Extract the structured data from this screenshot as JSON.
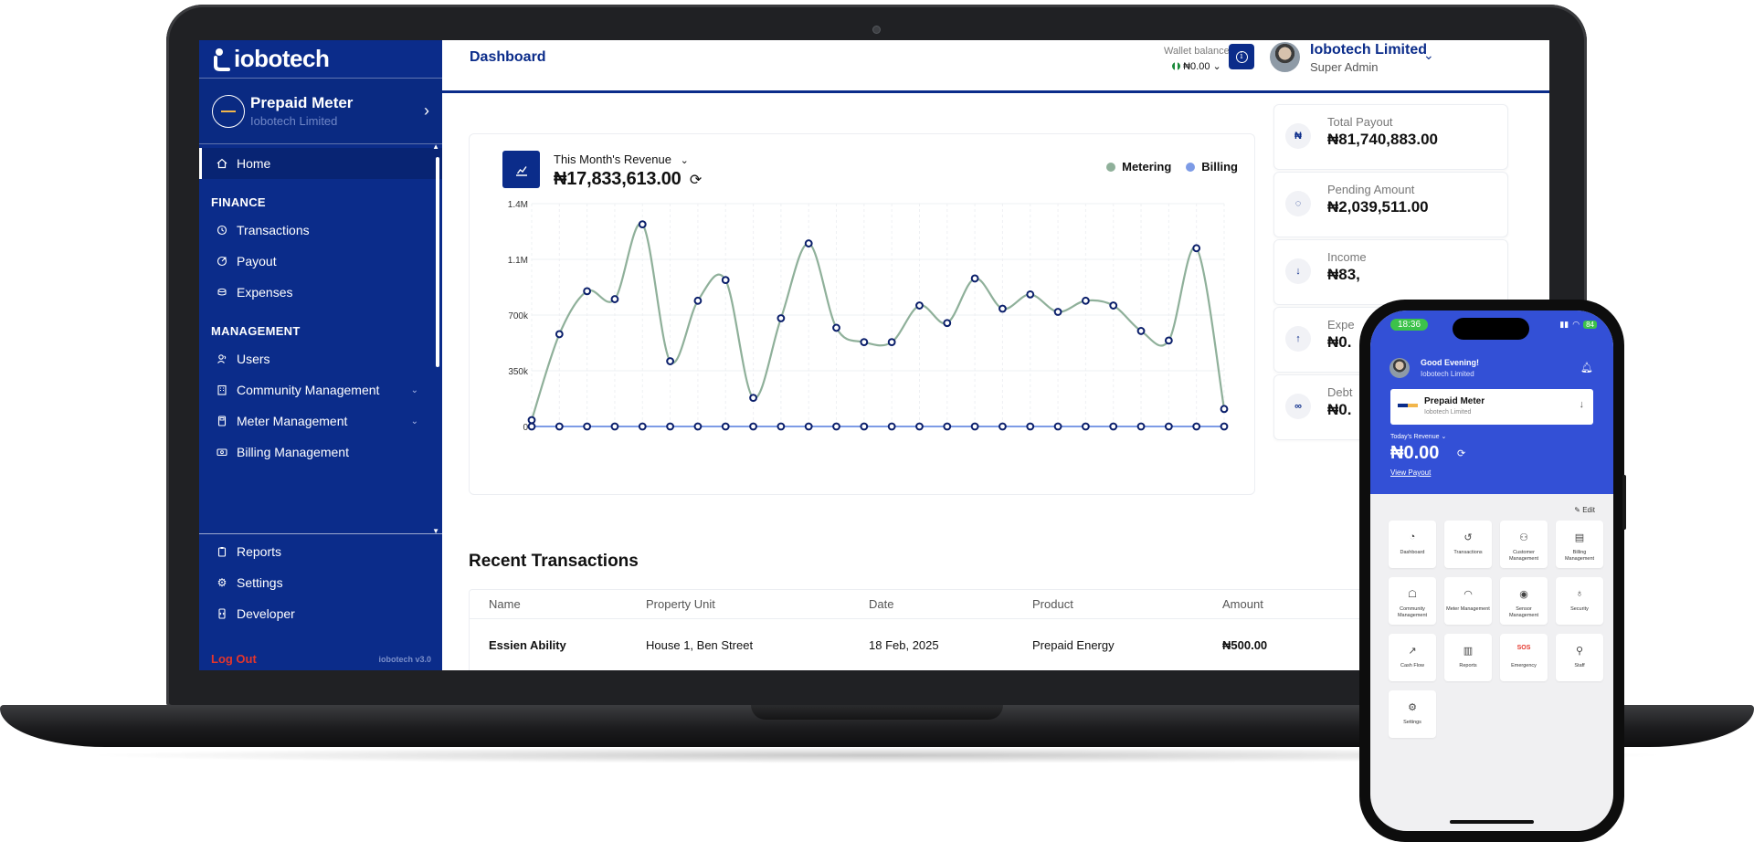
{
  "sidebar": {
    "brand": "iobotech",
    "meter_card": {
      "title": "Prepaid Meter",
      "subtitle": "Iobotech Limited"
    },
    "home": "Home",
    "finance_title": "FINANCE",
    "finance_items": [
      "Transactions",
      "Payout",
      "Expenses"
    ],
    "management_title": "MANAGEMENT",
    "management_items": [
      "Users",
      "Community Management",
      "Meter Management",
      "Billing Management"
    ],
    "bottom_items": [
      "Reports",
      "Settings",
      "Developer"
    ],
    "logout": "Log Out",
    "version": "iobotech v3.0"
  },
  "header": {
    "page_title": "Dashboard",
    "wallet_label": "Wallet balance",
    "wallet_value": "₦0.00",
    "user_name": "Iobotech Limited",
    "user_role": "Super Admin"
  },
  "revenue": {
    "label": "This Month's Revenue",
    "value": "₦17,833,613.00"
  },
  "chart_data": {
    "type": "line",
    "title": "",
    "xlabel": "",
    "ylabel": "",
    "y_ticks": [
      "0",
      "350k",
      "700k",
      "1.1M",
      "1.4M"
    ],
    "ylim": [
      0,
      1400000
    ],
    "grid": true,
    "legend_position": "top-right",
    "x": [
      1,
      2,
      3,
      4,
      5,
      6,
      7,
      8,
      9,
      10,
      11,
      12,
      13,
      14,
      15,
      16,
      17,
      18,
      19,
      20,
      21,
      22,
      23,
      24,
      25,
      26
    ],
    "series": [
      {
        "name": "Metering",
        "color": "#8fb09a",
        "values": [
          40000,
          580000,
          850000,
          800000,
          1270000,
          410000,
          790000,
          920000,
          180000,
          680000,
          1150000,
          620000,
          530000,
          530000,
          760000,
          650000,
          930000,
          740000,
          830000,
          720000,
          790000,
          760000,
          600000,
          540000,
          1120000,
          110000
        ]
      },
      {
        "name": "Billing",
        "color": "#7d9be6",
        "values": [
          0,
          0,
          0,
          0,
          0,
          0,
          0,
          0,
          0,
          0,
          0,
          0,
          0,
          0,
          0,
          0,
          0,
          0,
          0,
          0,
          0,
          0,
          0,
          0,
          0,
          0
        ]
      }
    ]
  },
  "stats": [
    {
      "label": "Total Payout",
      "value": "₦81,740,883.00",
      "icon": "naira-icon"
    },
    {
      "label": "Pending Amount",
      "value": "₦2,039,511.00",
      "icon": "pending-icon"
    },
    {
      "label": "Income",
      "value": "₦83,",
      "icon": "arrow-down-icon"
    },
    {
      "label": "Expe",
      "value": "₦0.",
      "icon": "arrow-up-icon"
    },
    {
      "label": "Debt",
      "value": "₦0.",
      "icon": "link-icon"
    }
  ],
  "transactions": {
    "title": "Recent Transactions",
    "columns": [
      "Name",
      "Property Unit",
      "Date",
      "Product",
      "Amount"
    ],
    "rows": [
      {
        "name": "Essien Ability",
        "unit": "House 1, Ben Street",
        "date": "18 Feb, 2025",
        "product": "Prepaid Energy",
        "amount": "₦500.00"
      }
    ]
  },
  "phone": {
    "time": "18:36",
    "battery": "84",
    "greeting": "Good Evening!",
    "company": "Iobotech Limited",
    "meter_title": "Prepaid Meter",
    "meter_sub": "Iobotech Limited",
    "revenue_label": "Today's Revenue",
    "revenue_value": "₦0.00",
    "view_payout": "View Payout",
    "edit": "Edit",
    "tiles": [
      "Dashboard",
      "Transactions",
      "Customer Management",
      "Billing Management",
      "Community Management",
      "Meter Management",
      "Sensor Management",
      "Security",
      "Cash Flow",
      "Reports",
      "Emergency",
      "Staff",
      "Settings"
    ],
    "sos": "SOS"
  },
  "colors": {
    "primary": "#0b2c8a",
    "metering": "#8fb09a",
    "billing": "#7d9be6",
    "logout": "#e4352b"
  }
}
